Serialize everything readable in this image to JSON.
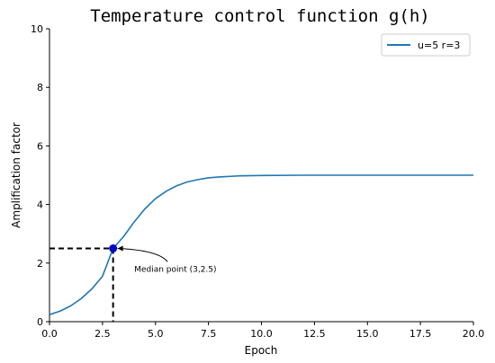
{
  "chart_data": {
    "type": "line",
    "title": "Temperature control function g(h)",
    "xlabel": "Epoch",
    "ylabel": "Amplification factor",
    "xlim": [
      0,
      20
    ],
    "ylim": [
      0,
      10
    ],
    "xticks": [
      0,
      2.5,
      5,
      7.5,
      10,
      12.5,
      15,
      17.5,
      20
    ],
    "xtick_labels": [
      "0.0",
      "2.5",
      "5.0",
      "7.5",
      "10.0",
      "12.5",
      "15.0",
      "17.5",
      "20.0"
    ],
    "yticks": [
      0,
      2,
      4,
      6,
      8,
      10
    ],
    "ytick_labels": [
      "0",
      "2",
      "4",
      "6",
      "8",
      "10"
    ],
    "grid": false,
    "legend_position": "top-right",
    "series": [
      {
        "name": "u=5 r=3",
        "color": "#1f77b4",
        "x": [
          0,
          0.5,
          1,
          1.5,
          2,
          2.5,
          3,
          3.5,
          4,
          4.5,
          5,
          5.5,
          6,
          6.5,
          7,
          7.5,
          8,
          9,
          10,
          12,
          14,
          16,
          18,
          20
        ],
        "y": [
          0.24,
          0.36,
          0.54,
          0.79,
          1.12,
          1.55,
          2.5,
          2.91,
          3.41,
          3.85,
          4.2,
          4.45,
          4.64,
          4.77,
          4.85,
          4.91,
          4.94,
          4.98,
          4.99,
          5.0,
          5.0,
          5.0,
          5.0,
          5.0
        ]
      }
    ],
    "annotation": {
      "text": "Median point  (3,2.5)",
      "point": [
        3,
        2.5
      ],
      "text_position": [
        4,
        1.8
      ],
      "marker_color": "#0000cc"
    },
    "reference_lines": {
      "x": 3,
      "y": 2.5,
      "style": "dashed",
      "color": "#000000"
    }
  }
}
